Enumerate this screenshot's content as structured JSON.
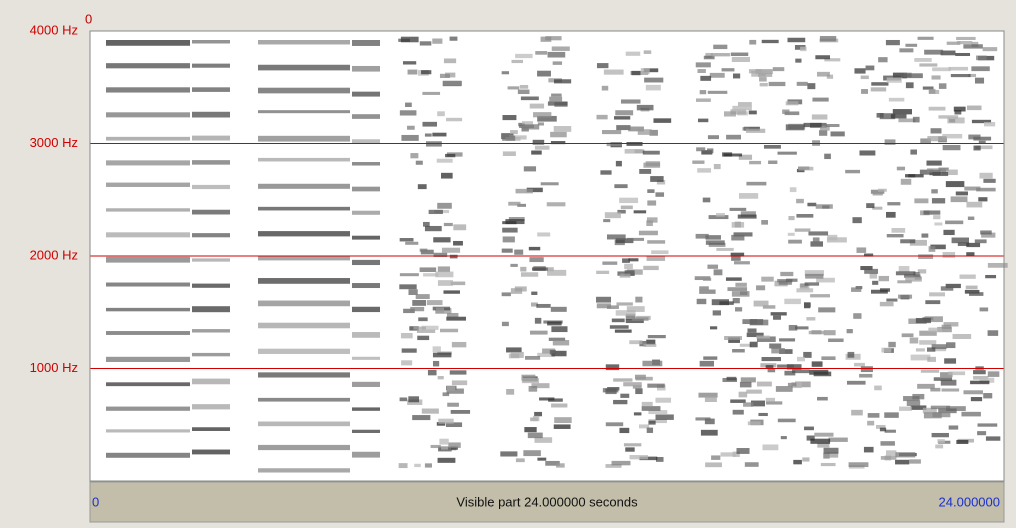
{
  "corner_label": "0",
  "frequency_axis": {
    "lim": [
      0,
      4000
    ],
    "ticks": [
      {
        "value": 4000,
        "label": "4000 Hz"
      },
      {
        "value": 3000,
        "label": "3000 Hz"
      },
      {
        "value": 2000,
        "label": "2000 Hz"
      },
      {
        "value": 1000,
        "label": "1000 Hz"
      }
    ]
  },
  "time_bar": {
    "start": "0",
    "caption": "Visible part 24.000000 seconds",
    "end": "24.000000"
  }
}
